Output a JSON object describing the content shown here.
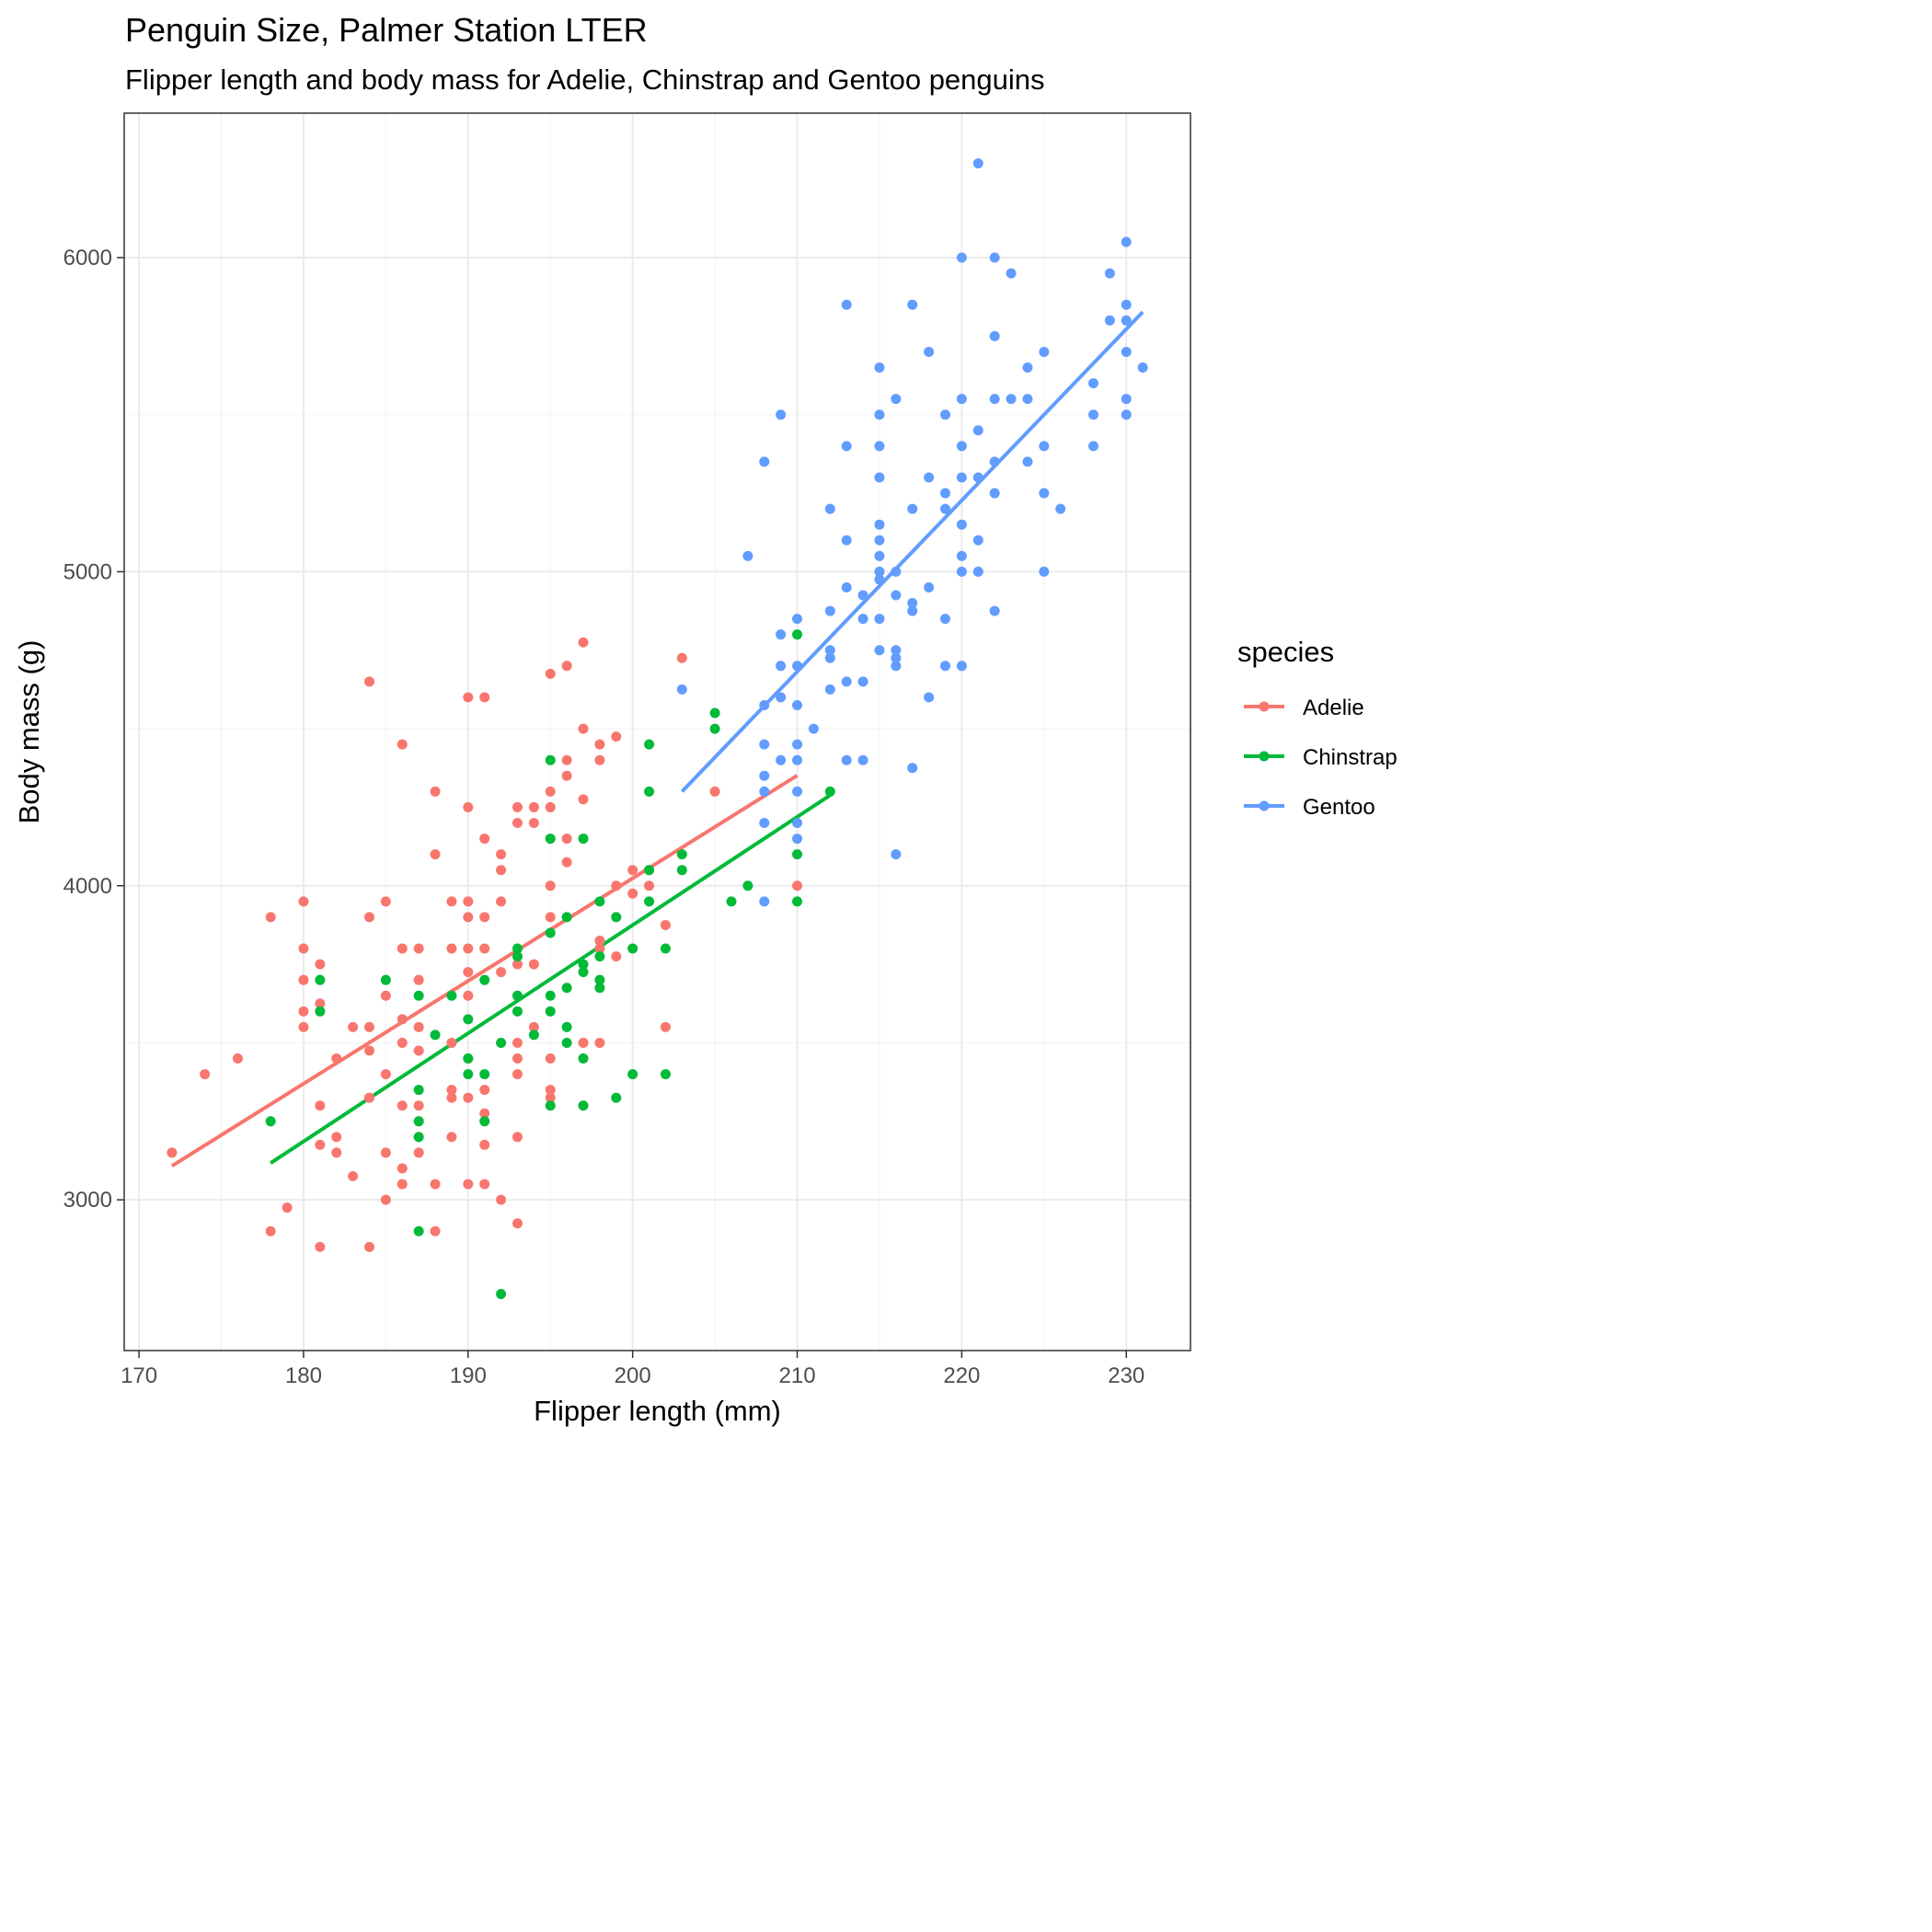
{
  "chart_data": {
    "type": "scatter",
    "title": "Penguin Size, Palmer Station LTER",
    "subtitle": "Flipper length and body mass for Adelie, Chinstrap and Gentoo penguins",
    "xlabel": "Flipper length (mm)",
    "ylabel": "Body mass (g)",
    "xlim": [
      169.1,
      233.9
    ],
    "ylim": [
      2520,
      6460
    ],
    "xticks": [
      170,
      180,
      190,
      200,
      210,
      220,
      230
    ],
    "yticks": [
      3000,
      4000,
      5000,
      6000
    ],
    "grid": true,
    "legend": {
      "title": "species",
      "placement": "right"
    },
    "series": [
      {
        "name": "Adelie",
        "color": "#F8766D",
        "fit": [
          [
            172,
            3108
          ],
          [
            210,
            4351
          ]
        ],
        "points": [
          [
            172,
            3150
          ],
          [
            174,
            3400
          ],
          [
            176,
            3450
          ],
          [
            178,
            3900
          ],
          [
            178,
            2900
          ],
          [
            179,
            2975
          ],
          [
            180,
            3950
          ],
          [
            180,
            3800
          ],
          [
            180,
            3700
          ],
          [
            180,
            3600
          ],
          [
            180,
            3550
          ],
          [
            181,
            3750
          ],
          [
            181,
            3625
          ],
          [
            181,
            3300
          ],
          [
            181,
            3175
          ],
          [
            181,
            2850
          ],
          [
            182,
            3450
          ],
          [
            182,
            3200
          ],
          [
            182,
            3150
          ],
          [
            183,
            3550
          ],
          [
            183,
            3075
          ],
          [
            184,
            4650
          ],
          [
            184,
            3900
          ],
          [
            184,
            3550
          ],
          [
            184,
            3475
          ],
          [
            184,
            3325
          ],
          [
            184,
            2850
          ],
          [
            185,
            3950
          ],
          [
            185,
            3650
          ],
          [
            185,
            3400
          ],
          [
            185,
            3150
          ],
          [
            185,
            3000
          ],
          [
            186,
            4450
          ],
          [
            186,
            3800
          ],
          [
            186,
            3575
          ],
          [
            186,
            3500
          ],
          [
            186,
            3300
          ],
          [
            186,
            3100
          ],
          [
            186,
            3050
          ],
          [
            187,
            3800
          ],
          [
            187,
            3700
          ],
          [
            187,
            3550
          ],
          [
            187,
            3475
          ],
          [
            187,
            3300
          ],
          [
            187,
            3150
          ],
          [
            188,
            4300
          ],
          [
            188,
            4100
          ],
          [
            188,
            3050
          ],
          [
            188,
            2900
          ],
          [
            189,
            3950
          ],
          [
            189,
            3800
          ],
          [
            189,
            3500
          ],
          [
            189,
            3350
          ],
          [
            189,
            3325
          ],
          [
            189,
            3200
          ],
          [
            190,
            4600
          ],
          [
            190,
            4250
          ],
          [
            190,
            3950
          ],
          [
            190,
            3900
          ],
          [
            190,
            3800
          ],
          [
            190,
            3725
          ],
          [
            190,
            3650
          ],
          [
            190,
            3450
          ],
          [
            190,
            3325
          ],
          [
            190,
            3050
          ],
          [
            191,
            4600
          ],
          [
            191,
            4150
          ],
          [
            191,
            3900
          ],
          [
            191,
            3800
          ],
          [
            191,
            3350
          ],
          [
            191,
            3275
          ],
          [
            191,
            3175
          ],
          [
            191,
            3050
          ],
          [
            192,
            4100
          ],
          [
            192,
            4050
          ],
          [
            192,
            3950
          ],
          [
            192,
            3725
          ],
          [
            192,
            3000
          ],
          [
            193,
            4250
          ],
          [
            193,
            4200
          ],
          [
            193,
            3750
          ],
          [
            193,
            3500
          ],
          [
            193,
            3450
          ],
          [
            193,
            3400
          ],
          [
            193,
            3200
          ],
          [
            193,
            2925
          ],
          [
            194,
            4250
          ],
          [
            194,
            4200
          ],
          [
            194,
            3750
          ],
          [
            194,
            3550
          ],
          [
            195,
            4675
          ],
          [
            195,
            4300
          ],
          [
            195,
            4250
          ],
          [
            195,
            4000
          ],
          [
            195,
            3900
          ],
          [
            195,
            3450
          ],
          [
            195,
            3350
          ],
          [
            195,
            3325
          ],
          [
            196,
            4700
          ],
          [
            196,
            4400
          ],
          [
            196,
            4350
          ],
          [
            196,
            4150
          ],
          [
            196,
            4075
          ],
          [
            197,
            4775
          ],
          [
            197,
            4500
          ],
          [
            197,
            4275
          ],
          [
            197,
            3500
          ],
          [
            198,
            4450
          ],
          [
            198,
            4400
          ],
          [
            198,
            3825
          ],
          [
            198,
            3800
          ],
          [
            198,
            3500
          ],
          [
            199,
            4475
          ],
          [
            199,
            4000
          ],
          [
            199,
            3775
          ],
          [
            200,
            4050
          ],
          [
            200,
            3975
          ],
          [
            201,
            4050
          ],
          [
            201,
            4000
          ],
          [
            202,
            3875
          ],
          [
            202,
            3550
          ],
          [
            203,
            4725
          ],
          [
            205,
            4300
          ],
          [
            210,
            4000
          ]
        ]
      },
      {
        "name": "Chinstrap",
        "color": "#00BA38",
        "fit": [
          [
            178,
            3117
          ],
          [
            212,
            4288
          ]
        ],
        "points": [
          [
            178,
            3250
          ],
          [
            181,
            3700
          ],
          [
            181,
            3600
          ],
          [
            185,
            3700
          ],
          [
            187,
            3650
          ],
          [
            187,
            3350
          ],
          [
            187,
            3250
          ],
          [
            187,
            3200
          ],
          [
            187,
            2900
          ],
          [
            188,
            3525
          ],
          [
            189,
            3650
          ],
          [
            190,
            3575
          ],
          [
            190,
            3450
          ],
          [
            190,
            3400
          ],
          [
            191,
            3700
          ],
          [
            191,
            3400
          ],
          [
            191,
            3250
          ],
          [
            192,
            3500
          ],
          [
            192,
            2700
          ],
          [
            193,
            3775
          ],
          [
            193,
            3800
          ],
          [
            193,
            3650
          ],
          [
            193,
            3600
          ],
          [
            194,
            3525
          ],
          [
            195,
            4400
          ],
          [
            195,
            4150
          ],
          [
            195,
            3850
          ],
          [
            195,
            3650
          ],
          [
            195,
            3600
          ],
          [
            195,
            3300
          ],
          [
            196,
            3900
          ],
          [
            196,
            3675
          ],
          [
            196,
            3550
          ],
          [
            196,
            3500
          ],
          [
            197,
            4150
          ],
          [
            197,
            3750
          ],
          [
            197,
            3725
          ],
          [
            197,
            3450
          ],
          [
            197,
            3300
          ],
          [
            198,
            3950
          ],
          [
            198,
            3775
          ],
          [
            198,
            3700
          ],
          [
            198,
            3675
          ],
          [
            199,
            3900
          ],
          [
            199,
            3325
          ],
          [
            200,
            3800
          ],
          [
            200,
            3400
          ],
          [
            201,
            4450
          ],
          [
            201,
            4300
          ],
          [
            201,
            4050
          ],
          [
            201,
            3950
          ],
          [
            202,
            3800
          ],
          [
            202,
            3400
          ],
          [
            203,
            4100
          ],
          [
            203,
            4050
          ],
          [
            205,
            4550
          ],
          [
            205,
            4500
          ],
          [
            206,
            3950
          ],
          [
            207,
            4000
          ],
          [
            210,
            4800
          ],
          [
            210,
            4100
          ],
          [
            210,
            3950
          ],
          [
            212,
            4300
          ]
        ]
      },
      {
        "name": "Gentoo",
        "color": "#619CFF",
        "fit": [
          [
            203,
            4300
          ],
          [
            231,
            5827
          ]
        ],
        "points": [
          [
            203,
            4625
          ],
          [
            207,
            5050
          ],
          [
            208,
            5350
          ],
          [
            208,
            4575
          ],
          [
            208,
            4450
          ],
          [
            208,
            4350
          ],
          [
            208,
            4300
          ],
          [
            208,
            4200
          ],
          [
            208,
            3950
          ],
          [
            209,
            5500
          ],
          [
            209,
            4800
          ],
          [
            209,
            4700
          ],
          [
            209,
            4600
          ],
          [
            209,
            4400
          ],
          [
            210,
            4850
          ],
          [
            210,
            4700
          ],
          [
            210,
            4575
          ],
          [
            210,
            4450
          ],
          [
            210,
            4400
          ],
          [
            210,
            4300
          ],
          [
            210,
            4200
          ],
          [
            210,
            4150
          ],
          [
            211,
            4500
          ],
          [
            212,
            5200
          ],
          [
            212,
            4875
          ],
          [
            212,
            4750
          ],
          [
            212,
            4725
          ],
          [
            212,
            4625
          ],
          [
            213,
            5850
          ],
          [
            213,
            5400
          ],
          [
            213,
            5100
          ],
          [
            213,
            4950
          ],
          [
            213,
            4650
          ],
          [
            213,
            4400
          ],
          [
            214,
            4925
          ],
          [
            214,
            4850
          ],
          [
            214,
            4650
          ],
          [
            214,
            4400
          ],
          [
            215,
            5650
          ],
          [
            215,
            5500
          ],
          [
            215,
            5400
          ],
          [
            215,
            5300
          ],
          [
            215,
            5150
          ],
          [
            215,
            5100
          ],
          [
            215,
            5050
          ],
          [
            215,
            5000
          ],
          [
            215,
            4975
          ],
          [
            215,
            4850
          ],
          [
            215,
            4750
          ],
          [
            216,
            5550
          ],
          [
            216,
            5000
          ],
          [
            216,
            4925
          ],
          [
            216,
            4750
          ],
          [
            216,
            4725
          ],
          [
            216,
            4700
          ],
          [
            216,
            4100
          ],
          [
            217,
            5850
          ],
          [
            217,
            5200
          ],
          [
            217,
            4900
          ],
          [
            217,
            4875
          ],
          [
            217,
            4375
          ],
          [
            218,
            5700
          ],
          [
            218,
            5300
          ],
          [
            218,
            4950
          ],
          [
            218,
            4600
          ],
          [
            219,
            5500
          ],
          [
            219,
            5250
          ],
          [
            219,
            5200
          ],
          [
            219,
            4850
          ],
          [
            219,
            4700
          ],
          [
            220,
            6000
          ],
          [
            220,
            5550
          ],
          [
            220,
            5400
          ],
          [
            220,
            5300
          ],
          [
            220,
            5150
          ],
          [
            220,
            5050
          ],
          [
            220,
            5000
          ],
          [
            220,
            4700
          ],
          [
            221,
            6300
          ],
          [
            221,
            5450
          ],
          [
            221,
            5300
          ],
          [
            221,
            5100
          ],
          [
            221,
            5000
          ],
          [
            222,
            6000
          ],
          [
            222,
            5750
          ],
          [
            222,
            5550
          ],
          [
            222,
            5350
          ],
          [
            222,
            5250
          ],
          [
            222,
            4875
          ],
          [
            223,
            5950
          ],
          [
            223,
            5550
          ],
          [
            224,
            5650
          ],
          [
            224,
            5550
          ],
          [
            224,
            5350
          ],
          [
            225,
            5700
          ],
          [
            225,
            5400
          ],
          [
            225,
            5250
          ],
          [
            225,
            5000
          ],
          [
            226,
            5200
          ],
          [
            228,
            5600
          ],
          [
            228,
            5500
          ],
          [
            228,
            5400
          ],
          [
            229,
            5950
          ],
          [
            229,
            5800
          ],
          [
            230,
            6050
          ],
          [
            230,
            5850
          ],
          [
            230,
            5800
          ],
          [
            230,
            5700
          ],
          [
            230,
            5550
          ],
          [
            230,
            5500
          ],
          [
            231,
            5650
          ]
        ]
      }
    ]
  }
}
